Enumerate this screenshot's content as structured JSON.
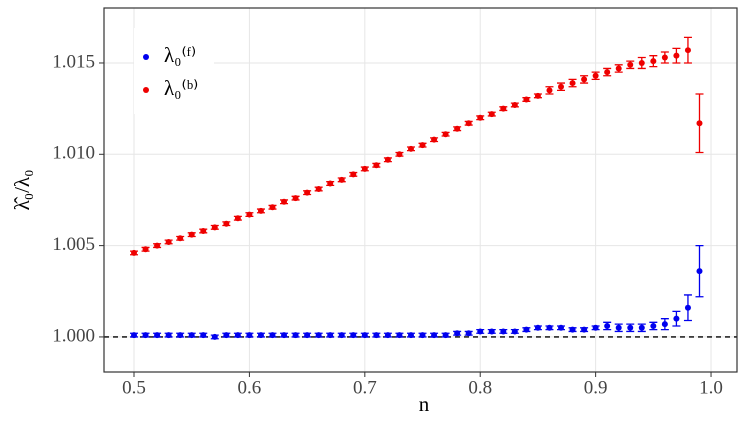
{
  "chart_data": {
    "type": "errorbar",
    "xlabel": "n",
    "ylabel": "λ̂₀/λ₀",
    "x": [
      0.5,
      0.51,
      0.52,
      0.53,
      0.54,
      0.55,
      0.56,
      0.57,
      0.58,
      0.59,
      0.6,
      0.61,
      0.62,
      0.63,
      0.64,
      0.65,
      0.66,
      0.67,
      0.68,
      0.69,
      0.7,
      0.71,
      0.72,
      0.73,
      0.74,
      0.75,
      0.76,
      0.77,
      0.78,
      0.79,
      0.8,
      0.81,
      0.82,
      0.83,
      0.84,
      0.85,
      0.86,
      0.87,
      0.88,
      0.89,
      0.9,
      0.91,
      0.92,
      0.93,
      0.94,
      0.95,
      0.96,
      0.97,
      0.98,
      0.99
    ],
    "series": [
      {
        "name": "λ₀⁽ᶠ⁾",
        "color": "#0000ee",
        "values": [
          1.0001,
          1.0001,
          1.0001,
          1.0001,
          1.0001,
          1.0001,
          1.0001,
          1.0,
          1.0001,
          1.0001,
          1.0001,
          1.0001,
          1.0001,
          1.0001,
          1.0001,
          1.0001,
          1.0001,
          1.0001,
          1.0001,
          1.0001,
          1.0001,
          1.0001,
          1.0001,
          1.0001,
          1.0001,
          1.0001,
          1.0001,
          1.0001,
          1.0002,
          1.0002,
          1.0003,
          1.0003,
          1.0003,
          1.0003,
          1.0004,
          1.0005,
          1.0005,
          1.0005,
          1.0004,
          1.0004,
          1.0005,
          1.0006,
          1.0005,
          1.0005,
          1.0005,
          1.0006,
          1.0007,
          1.001,
          1.0016,
          1.0036
        ],
        "errors": [
          0.0001,
          0.0001,
          0.0001,
          0.0001,
          0.0001,
          0.0001,
          0.0001,
          0.0001,
          0.0001,
          0.0001,
          0.0001,
          0.0001,
          0.0001,
          0.0001,
          0.0001,
          0.0001,
          0.0001,
          0.0001,
          0.0001,
          0.0001,
          0.0001,
          0.0001,
          0.0001,
          0.0001,
          0.0001,
          0.0001,
          0.0001,
          0.0001,
          0.0001,
          0.0001,
          0.0001,
          0.0001,
          0.0001,
          0.0001,
          0.0001,
          0.0001,
          0.0001,
          0.0001,
          0.0001,
          0.0001,
          0.0001,
          0.0002,
          0.0002,
          0.0002,
          0.0002,
          0.0002,
          0.0003,
          0.0004,
          0.0007,
          0.0014
        ]
      },
      {
        "name": "λ₀⁽ᵇ⁾",
        "color": "#ee0000",
        "values": [
          1.0046,
          1.0048,
          1.005,
          1.0052,
          1.0054,
          1.0056,
          1.0058,
          1.006,
          1.0062,
          1.0065,
          1.0067,
          1.0069,
          1.0071,
          1.0074,
          1.0076,
          1.0079,
          1.0081,
          1.0084,
          1.0086,
          1.0089,
          1.0092,
          1.0094,
          1.0097,
          1.01,
          1.0103,
          1.0105,
          1.0108,
          1.0111,
          1.0114,
          1.0117,
          1.012,
          1.0122,
          1.0125,
          1.0127,
          1.013,
          1.0132,
          1.0135,
          1.0137,
          1.0139,
          1.0141,
          1.0143,
          1.0145,
          1.0147,
          1.0149,
          1.015,
          1.0151,
          1.0153,
          1.0154,
          1.0157,
          1.0117
        ],
        "errors": [
          0.0001,
          0.0001,
          0.0001,
          0.0001,
          0.0001,
          0.0001,
          0.0001,
          0.0001,
          0.0001,
          0.0001,
          0.0001,
          0.0001,
          0.0001,
          0.0001,
          0.0001,
          0.0001,
          0.0001,
          0.0001,
          0.0001,
          0.0001,
          0.0001,
          0.0001,
          0.0001,
          0.0001,
          0.0001,
          0.0001,
          0.0001,
          0.0001,
          0.0001,
          0.0001,
          0.0001,
          0.0001,
          0.0001,
          0.0001,
          0.0001,
          0.0001,
          0.0002,
          0.0002,
          0.0002,
          0.0002,
          0.0002,
          0.0002,
          0.0002,
          0.0002,
          0.0003,
          0.0003,
          0.0003,
          0.0004,
          0.0007,
          0.0016
        ]
      }
    ],
    "hline": 1,
    "xlim": [
      0.474,
      1.0225
    ],
    "ylim": [
      0.99808,
      1.01801
    ],
    "xticks": [
      0.5,
      0.6,
      0.7,
      0.8,
      0.9,
      {
        "value": 1,
        "label": "1.0"
      }
    ],
    "yticks": [
      {
        "value": 1,
        "label": "1.000"
      },
      1.005,
      {
        "value": 1.01,
        "label": "1.010"
      },
      1.015
    ],
    "grid": true,
    "legend": "top-left"
  }
}
